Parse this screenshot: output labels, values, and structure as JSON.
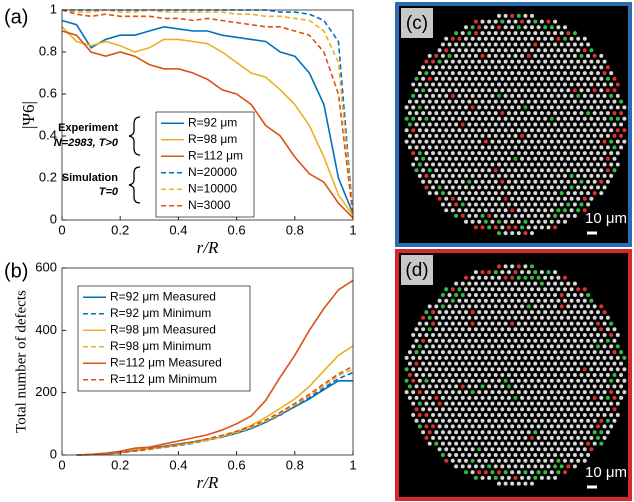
{
  "chart_data": [
    {
      "type": "line",
      "panel_label": "(a)",
      "x_label": "r/R",
      "y_label": "|Ψ6|",
      "x": [
        0,
        0.05,
        0.1,
        0.15,
        0.2,
        0.25,
        0.3,
        0.35,
        0.4,
        0.45,
        0.5,
        0.55,
        0.6,
        0.65,
        0.7,
        0.75,
        0.8,
        0.85,
        0.9,
        0.95,
        1
      ],
      "xlim": [
        0,
        1
      ],
      "ylim": [
        0,
        1
      ],
      "xticks": [
        0,
        0.2,
        0.4,
        0.6,
        0.8,
        1
      ],
      "yticks": [
        0,
        0.2,
        0.4,
        0.6,
        0.8,
        1
      ],
      "legend": "lower center",
      "annotations": [
        "Experiment",
        "N=2983, T>0",
        "Simulation",
        "T=0"
      ],
      "series": [
        {
          "name": "R=92 μm",
          "color": "#0072bd",
          "dashed": false,
          "values": [
            0.95,
            0.93,
            0.82,
            0.86,
            0.88,
            0.88,
            0.9,
            0.92,
            0.91,
            0.9,
            0.9,
            0.88,
            0.87,
            0.86,
            0.85,
            0.8,
            0.78,
            0.7,
            0.55,
            0.2,
            0.03
          ]
        },
        {
          "name": "R=98 μm",
          "color": "#edb120",
          "dashed": false,
          "values": [
            0.92,
            0.85,
            0.83,
            0.85,
            0.83,
            0.8,
            0.82,
            0.86,
            0.86,
            0.85,
            0.84,
            0.8,
            0.75,
            0.7,
            0.68,
            0.62,
            0.55,
            0.45,
            0.3,
            0.12,
            0.02
          ]
        },
        {
          "name": "R=112 μm",
          "color": "#d95319",
          "dashed": false,
          "values": [
            0.9,
            0.88,
            0.8,
            0.78,
            0.8,
            0.78,
            0.74,
            0.72,
            0.72,
            0.7,
            0.67,
            0.62,
            0.6,
            0.55,
            0.45,
            0.4,
            0.3,
            0.22,
            0.18,
            0.08,
            0.01
          ]
        },
        {
          "name": "N=20000",
          "color": "#0072bd",
          "dashed": true,
          "values": [
            1,
            1,
            1,
            1,
            1,
            1,
            1,
            1,
            1,
            1,
            1,
            1,
            1,
            1,
            1,
            0.99,
            0.99,
            0.98,
            0.95,
            0.85,
            0.02
          ]
        },
        {
          "name": "N=10000",
          "color": "#edb120",
          "dashed": true,
          "values": [
            1,
            0.99,
            0.99,
            1,
            0.99,
            0.99,
            1,
            0.99,
            0.99,
            0.99,
            0.99,
            0.99,
            0.98,
            0.98,
            0.97,
            0.97,
            0.96,
            0.95,
            0.9,
            0.75,
            0.02
          ]
        },
        {
          "name": "N=3000",
          "color": "#d95319",
          "dashed": true,
          "values": [
            1,
            0.98,
            0.97,
            0.98,
            0.97,
            0.97,
            0.97,
            0.96,
            0.96,
            0.95,
            0.96,
            0.95,
            0.94,
            0.93,
            0.92,
            0.92,
            0.9,
            0.88,
            0.8,
            0.6,
            0.02
          ]
        }
      ]
    },
    {
      "type": "line",
      "panel_label": "(b)",
      "x_label": "r/R",
      "y_label": "Total number of defects",
      "x": [
        0.05,
        0.1,
        0.15,
        0.2,
        0.25,
        0.3,
        0.35,
        0.4,
        0.45,
        0.5,
        0.55,
        0.6,
        0.65,
        0.7,
        0.75,
        0.8,
        0.85,
        0.9,
        0.95,
        1
      ],
      "xlim": [
        0,
        1
      ],
      "ylim": [
        0,
        600
      ],
      "xticks": [
        0,
        0.2,
        0.4,
        0.6,
        0.8,
        1
      ],
      "yticks": [
        0,
        200,
        400,
        600
      ],
      "legend": "upper left",
      "series": [
        {
          "name": "R=92 μm Measured",
          "color": "#0072bd",
          "dashed": false,
          "values": [
            0,
            1,
            3,
            8,
            15,
            22,
            28,
            35,
            42,
            50,
            58,
            70,
            85,
            105,
            130,
            155,
            180,
            210,
            238,
            238
          ]
        },
        {
          "name": "R=92 μm Minimum",
          "color": "#0072bd",
          "dashed": true,
          "values": [
            0,
            1,
            3,
            7,
            12,
            18,
            24,
            30,
            38,
            47,
            58,
            70,
            85,
            105,
            128,
            155,
            185,
            215,
            245,
            265
          ]
        },
        {
          "name": "R=98 μm Measured",
          "color": "#edb120",
          "dashed": false,
          "values": [
            0,
            2,
            5,
            10,
            18,
            20,
            25,
            32,
            40,
            48,
            60,
            75,
            95,
            120,
            150,
            180,
            220,
            270,
            320,
            350
          ]
        },
        {
          "name": "R=98 μm Minimum",
          "color": "#edb120",
          "dashed": true,
          "values": [
            0,
            1,
            3,
            7,
            13,
            19,
            25,
            32,
            40,
            50,
            60,
            72,
            88,
            108,
            132,
            160,
            190,
            222,
            255,
            275
          ]
        },
        {
          "name": "R=112 μm Measured",
          "color": "#d95319",
          "dashed": false,
          "values": [
            0,
            2,
            6,
            12,
            22,
            25,
            35,
            45,
            55,
            65,
            80,
            100,
            125,
            175,
            250,
            320,
            400,
            470,
            530,
            560
          ]
        },
        {
          "name": "R=112 μm Minimum",
          "color": "#d95319",
          "dashed": true,
          "values": [
            0,
            1,
            3,
            8,
            14,
            20,
            27,
            34,
            42,
            52,
            63,
            76,
            92,
            112,
            137,
            165,
            195,
            228,
            260,
            285
          ]
        }
      ]
    }
  ],
  "images": [
    {
      "label": "(c)",
      "scale_bar": "10 μm",
      "border": "#2a6db5"
    },
    {
      "label": "(d)",
      "scale_bar": "10 μm",
      "border": "#d62a2a"
    }
  ]
}
